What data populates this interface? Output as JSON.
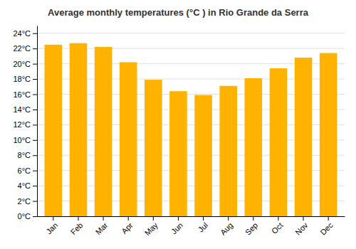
{
  "chart_data": {
    "type": "bar",
    "title": "Average monthly temperatures (°C ) in Rio Grande da Serra",
    "categories": [
      "Jan",
      "Feb",
      "Mar",
      "Apr",
      "May",
      "Jun",
      "Jul",
      "Aug",
      "Sep",
      "Oct",
      "Nov",
      "Dec"
    ],
    "values": [
      22.5,
      22.7,
      22.2,
      20.2,
      17.9,
      16.4,
      15.9,
      17.1,
      18.1,
      19.4,
      20.8,
      21.4
    ],
    "color": "#FFB300",
    "ylim": [
      0,
      25
    ],
    "yticks": [
      {
        "value": 0,
        "label": "0°C"
      },
      {
        "value": 2,
        "label": "2°C"
      },
      {
        "value": 4,
        "label": "4°C"
      },
      {
        "value": 6,
        "label": "6°C"
      },
      {
        "value": 8,
        "label": "8°C"
      },
      {
        "value": 10,
        "label": "10°C"
      },
      {
        "value": 12,
        "label": "12°C"
      },
      {
        "value": 14,
        "label": "14°C"
      },
      {
        "value": 16,
        "label": "16°C"
      },
      {
        "value": 18,
        "label": "18°C"
      },
      {
        "value": 20,
        "label": "20°C"
      },
      {
        "value": 22,
        "label": "22°C"
      },
      {
        "value": 24,
        "label": "24°C"
      }
    ],
    "grid": true
  }
}
